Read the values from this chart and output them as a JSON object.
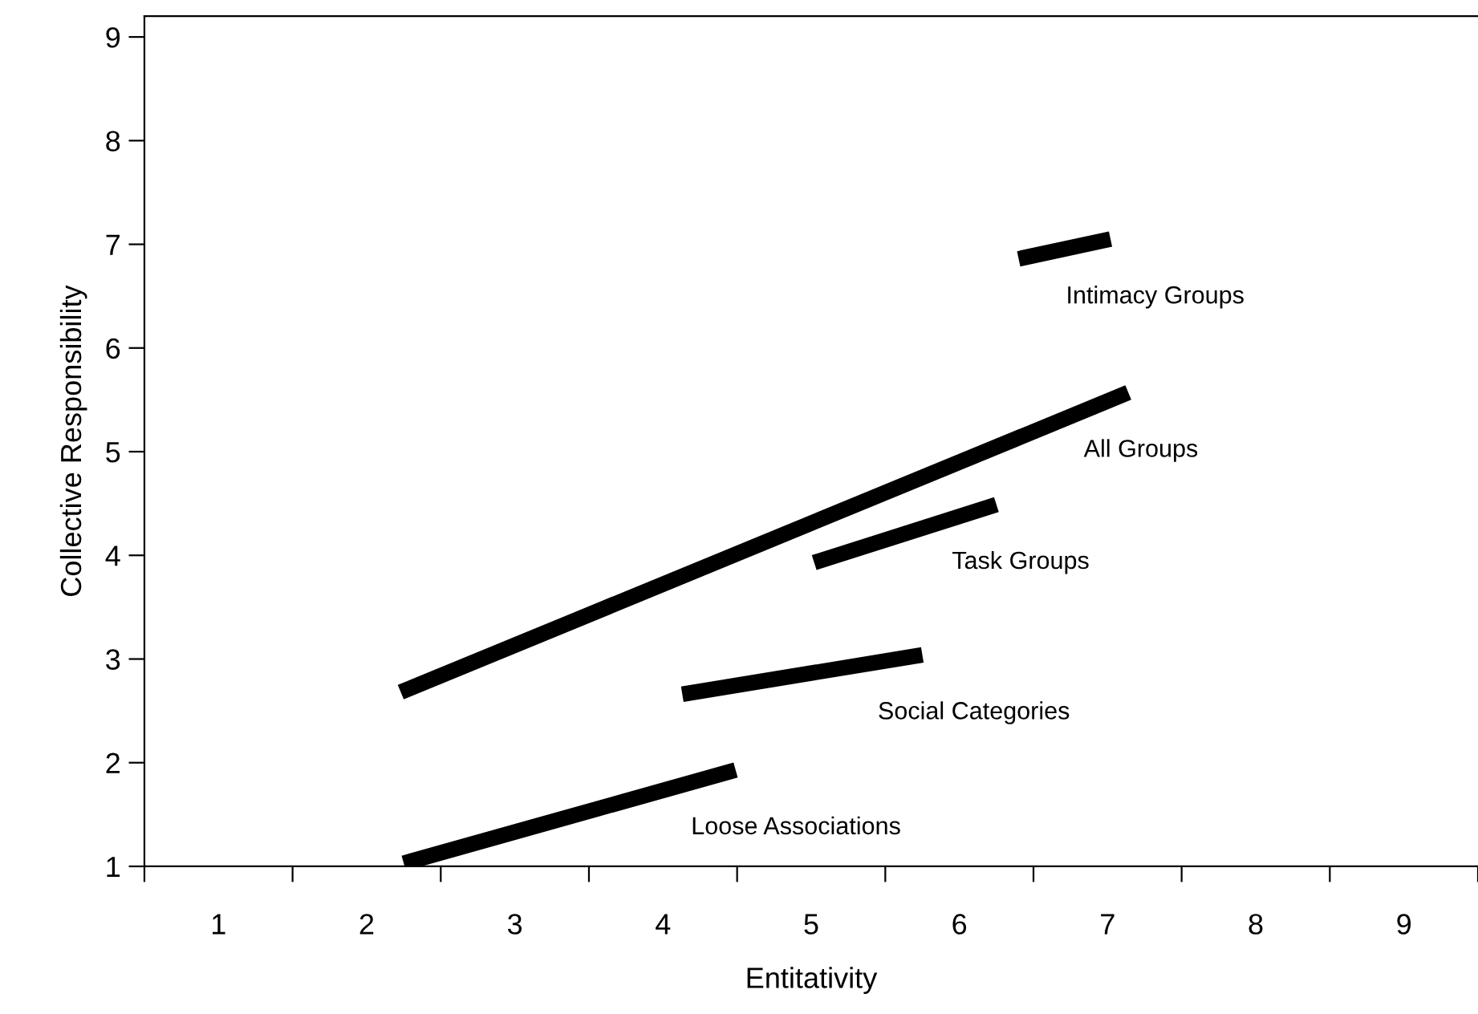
{
  "chart_data": {
    "type": "line",
    "xlabel": "Entitativity",
    "ylabel": "Collective Responsibility",
    "xlim": [
      0.5,
      9.5
    ],
    "ylim": [
      1,
      9.2
    ],
    "xticks": [
      {
        "value": 0.5,
        "label": null
      },
      1,
      {
        "value": 1.5,
        "label": null
      },
      2,
      {
        "value": 2.5,
        "label": null
      },
      3,
      {
        "value": 3.5,
        "label": null
      },
      4,
      {
        "value": 4.5,
        "label": null
      },
      5,
      {
        "value": 5.5,
        "label": null
      },
      6,
      {
        "value": 6.5,
        "label": null
      },
      7,
      {
        "value": 7.5,
        "label": null
      },
      8,
      {
        "value": 8.5,
        "label": null
      },
      9,
      {
        "value": 9.5,
        "label": null
      }
    ],
    "yticks": [
      1,
      2,
      3,
      4,
      5,
      6,
      7,
      8,
      9
    ],
    "grid": false,
    "legend": false,
    "marker": "none",
    "line_style": "solid",
    "series": [
      {
        "name": "All Groups",
        "color": "#000000",
        "x": [
          2.23,
          7.14
        ],
        "values": [
          2.68,
          5.57
        ]
      },
      {
        "name": "Task Groups",
        "color": "#000000",
        "x": [
          5.02,
          6.25
        ],
        "values": [
          3.93,
          4.49
        ]
      },
      {
        "name": "Social Categories",
        "color": "#000000",
        "x": [
          4.13,
          5.75
        ],
        "values": [
          2.66,
          3.04
        ]
      },
      {
        "name": "Loose Associations",
        "color": "#000000",
        "x": [
          2.25,
          4.49
        ],
        "values": [
          1.03,
          1.93
        ]
      },
      {
        "name": "Intimacy Groups",
        "color": "#000000",
        "x": [
          6.4,
          7.02
        ],
        "values": [
          6.86,
          7.05
        ]
      }
    ]
  }
}
